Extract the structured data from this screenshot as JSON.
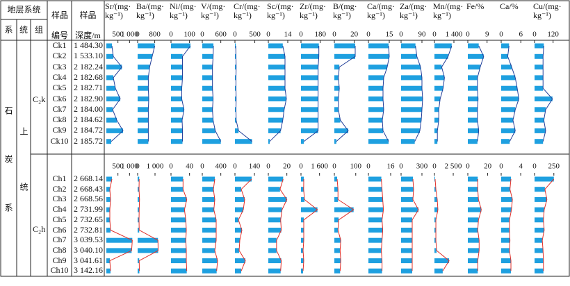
{
  "table": {
    "header": {
      "strata": "地层系统",
      "system": "系",
      "series": "统",
      "formation": "组",
      "sample_id": "样品编号",
      "depth": "样品\n深度/m"
    },
    "system": "石炭系",
    "series": "上统",
    "groups": [
      {
        "formation": "C₂k",
        "samples": [
          {
            "id": "Ck1",
            "depth": "1 484.30"
          },
          {
            "id": "Ck2",
            "depth": "1 533.10"
          },
          {
            "id": "Ck3",
            "depth": "2 182.24"
          },
          {
            "id": "Ck4",
            "depth": "2 182.68"
          },
          {
            "id": "Ck5",
            "depth": "2 182.71"
          },
          {
            "id": "Ck6",
            "depth": "2 182.90"
          },
          {
            "id": "Ck7",
            "depth": "2 184.00"
          },
          {
            "id": "Ck8",
            "depth": "2 184.62"
          },
          {
            "id": "Ck9",
            "depth": "2 184.72"
          },
          {
            "id": "Ck10",
            "depth": "2 185.72"
          }
        ]
      },
      {
        "formation": "C₂h",
        "samples": [
          {
            "id": "Ch1",
            "depth": "2 668.14"
          },
          {
            "id": "Ch2",
            "depth": "2 668.43"
          },
          {
            "id": "Ch3",
            "depth": "2 668.56"
          },
          {
            "id": "Ch4",
            "depth": "2 731.99"
          },
          {
            "id": "Ch5",
            "depth": "2 732.65"
          },
          {
            "id": "Ch6",
            "depth": "2 732.81"
          },
          {
            "id": "Ch7",
            "depth": "3 039.53"
          },
          {
            "id": "Ch8",
            "depth": "3 040.10"
          },
          {
            "id": "Ch9",
            "depth": "3 041.61"
          },
          {
            "id": "Ch10",
            "depth": "3 142.16"
          }
        ]
      }
    ]
  },
  "chart_data": [
    {
      "type": "bar",
      "title": "Sr/(mg·\nkg⁻¹)",
      "panels": [
        {
          "xlim": [
            0,
            1200
          ],
          "xticks": [
            500,
            {
              "value": 1000,
              "label": "1 000"
            }
          ],
          "values": [
            240,
            300,
            670,
            300,
            390,
            600,
            270,
            450,
            720,
            210
          ],
          "color": "#1ea0e0",
          "line_color": "#23409a"
        },
        {
          "xlim": [
            0,
            1200
          ],
          "xticks": [
            500,
            {
              "value": 1000,
              "label": "1 000"
            }
          ],
          "values": [
            240,
            150,
            180,
            150,
            150,
            180,
            1120,
            1090,
            150,
            180
          ],
          "color": "#1ea0e0",
          "line_color": "#e0302a"
        }
      ]
    },
    {
      "type": "bar",
      "title": "Ba/(mg·\nkg⁻¹)",
      "panels": [
        {
          "xlim": [
            0,
            1300
          ],
          "xticks": [
            0,
            800
          ],
          "values": [
            800,
            680,
            560,
            500,
            500,
            520,
            500,
            500,
            500,
            500
          ],
          "color": "#1ea0e0",
          "line_color": "#23409a"
        },
        {
          "xlim": [
            0,
            1600
          ],
          "xticks": [
            0,
            {
              "value": 1000,
              "label": "1 000"
            }
          ],
          "values": [
            90,
            80,
            110,
            90,
            80,
            90,
            1170,
            1180,
            90,
            100
          ],
          "color": "#1ea0e0",
          "line_color": "#e0302a"
        }
      ]
    },
    {
      "type": "bar",
      "title": "Ni/(mg·\nkg⁻¹)",
      "panels": [
        {
          "xlim": [
            0,
            150
          ],
          "xticks": [
            0,
            100
          ],
          "values": [
            105,
            62,
            62,
            62,
            58,
            58,
            70,
            60,
            62,
            62
          ],
          "color": "#1ea0e0",
          "line_color": "#23409a"
        },
        {
          "xlim": [
            0,
            60
          ],
          "xticks": [
            0,
            40
          ],
          "values": [
            26,
            26,
            34,
            29,
            32,
            33,
            32,
            33,
            33,
            34
          ],
          "color": "#1ea0e0",
          "line_color": "#e0302a"
        }
      ]
    },
    {
      "type": "bar",
      "title": "V/(mg·\nkg⁻¹)",
      "panels": [
        {
          "xlim": [
            0,
            900
          ],
          "xticks": [
            0,
            600
          ],
          "values": [
            360,
            350,
            330,
            330,
            330,
            350,
            330,
            350,
            420,
            600
          ],
          "color": "#1ea0e0",
          "line_color": "#23409a"
        },
        {
          "xlim": [
            0,
            600
          ],
          "xticks": [
            0,
            400
          ],
          "values": [
            270,
            240,
            270,
            250,
            300,
            300,
            300,
            270,
            330,
            310
          ],
          "color": "#1ea0e0",
          "line_color": "#e0302a"
        }
      ]
    },
    {
      "type": "bar",
      "title": "Cr/(mg·\nkg⁻¹)",
      "panels": [
        {
          "xlim": [
            0,
            700
          ],
          "xticks": [
            0,
            500
          ],
          "values": [
            20,
            25,
            30,
            25,
            25,
            30,
            25,
            30,
            90,
            430
          ],
          "color": "#1ea0e0",
          "line_color": "#23409a"
        },
        {
          "xlim": [
            0,
            200
          ],
          "xticks": [
            0,
            140
          ],
          "values": [
            120,
            45,
            70,
            60,
            25,
            50,
            35,
            30,
            75,
            45
          ],
          "color": "#1ea0e0",
          "line_color": "#e0302a"
        }
      ]
    },
    {
      "type": "bar",
      "title": "Sc/(mg·\nkg⁻¹)",
      "panels": [
        {
          "xlim": [
            0,
            20
          ],
          "xticks": [
            0,
            14
          ],
          "values": [
            10.4,
            12,
            12,
            12,
            12,
            13,
            11.4,
            10.4,
            8.8,
            1
          ],
          "color": "#1ea0e0",
          "line_color": "#23409a"
        },
        {
          "xlim": [
            0,
            30
          ],
          "xticks": [
            0,
            20
          ],
          "values": [
            16,
            12.6,
            20,
            14.8,
            13.3,
            14,
            8.9,
            8.9,
            14,
            13.3
          ],
          "color": "#1ea0e0",
          "line_color": "#e0302a"
        }
      ]
    },
    {
      "type": "bar",
      "title": "Zr/(mg·\nkg⁻¹)",
      "panels": [
        {
          "xlim": [
            0,
            260
          ],
          "xticks": [
            0,
            180
          ],
          "values": [
            167,
            167,
            160,
            160,
            160,
            160,
            160,
            160,
            160,
            27
          ],
          "color": "#1ea0e0",
          "line_color": "#23409a"
        },
        {
          "xlim": [
            0,
            2400
          ],
          "xticks": [
            0,
            {
              "value": 1600,
              "label": "1 600"
            }
          ],
          "values": [
            240,
            230,
            300,
            1420,
            240,
            240,
            240,
            180,
            240,
            180
          ],
          "color": "#1ea0e0",
          "line_color": "#e0302a"
        }
      ]
    },
    {
      "type": "bar",
      "title": "B/(mg·\nkg⁻¹)",
      "panels": [
        {
          "xlim": [
            0,
            28
          ],
          "xticks": [
            0,
            20
          ],
          "values": [
            21,
            21,
            5,
            4,
            5,
            4,
            4,
            6,
            14,
            2
          ],
          "color": "#1ea0e0",
          "line_color": "#23409a"
        },
        {
          "xlim": [
            0,
            130
          ],
          "xticks": [
            0,
            100
          ],
          "values": [
            13,
            17,
            17,
            90,
            20,
            17,
            30,
            27,
            30,
            27
          ],
          "color": "#1ea0e0",
          "line_color": "#e0302a"
        }
      ]
    },
    {
      "type": "bar",
      "title": "Ca/(mg·\nkg⁻¹)",
      "panels": [
        {
          "xlim": [
            0,
            20
          ],
          "xticks": [
            0,
            15
          ],
          "values": [
            14.5,
            15,
            13.5,
            11,
            10.5,
            10.5,
            11,
            10,
            10.5,
            14.5
          ],
          "color": "#1ea0e0",
          "line_color": "#23409a"
        },
        {
          "xlim": [
            0,
            20
          ],
          "xticks": [
            0,
            16
          ],
          "values": [
            9.3,
            9.8,
            10.3,
            10.8,
            9.8,
            10.3,
            9.8,
            9.3,
            9.8,
            9.8
          ],
          "color": "#1ea0e0",
          "line_color": "#e0302a"
        }
      ]
    },
    {
      "type": "bar",
      "title": "Za/(mg·\nkg⁻¹)",
      "panels": [
        {
          "xlim": [
            0,
            120
          ],
          "xticks": [
            0,
            90
          ],
          "values": [
            62,
            68,
            84,
            90,
            90,
            93,
            90,
            87,
            81,
            59
          ],
          "color": "#1ea0e0",
          "line_color": "#23409a"
        },
        {
          "xlim": [
            0,
            400
          ],
          "xticks": [
            0,
            300
          ],
          "values": [
            170,
            180,
            170,
            250,
            160,
            160,
            160,
            160,
            160,
            160
          ],
          "color": "#1ea0e0",
          "line_color": "#e0302a"
        }
      ]
    },
    {
      "type": "bar",
      "title": "Mn/(mg·\nkg⁻¹)",
      "panels": [
        {
          "xlim": [
            0,
            2000
          ],
          "xticks": [
            0,
            {
              "value": 1400,
              "label": "1 400"
            }
          ],
          "values": [
            1240,
            980,
            520,
            720,
            620,
            410,
            310,
            310,
            210,
            210
          ],
          "color": "#1ea0e0",
          "line_color": "#23409a"
        },
        {
          "xlim": [
            0,
            3700
          ],
          "xticks": [
            0,
            {
              "value": 2500,
              "label": "2 500"
            }
          ],
          "values": [
            90,
            190,
            370,
            460,
            190,
            190,
            190,
            280,
            1950,
            1100
          ],
          "color": "#1ea0e0",
          "line_color": "#e0302a"
        }
      ]
    },
    {
      "type": "bar",
      "title": "Fe/%",
      "panels": [
        {
          "xlim": [
            0,
            13
          ],
          "xticks": [
            0,
            9
          ],
          "values": [
            5.1,
            7.4,
            5.8,
            4.5,
            4.5,
            4.8,
            4.5,
            4.5,
            5.1,
            4.5
          ],
          "color": "#1ea0e0",
          "line_color": "#23409a"
        },
        {
          "xlim": [
            0,
            28
          ],
          "xticks": [
            0,
            20
          ],
          "values": [
            10,
            10,
            10.7,
            13.6,
            10.7,
            10,
            11.4,
            11.4,
            10,
            10
          ],
          "color": "#1ea0e0",
          "line_color": "#e0302a"
        }
      ]
    },
    {
      "type": "bar",
      "title": "Ca/%",
      "panels": [
        {
          "xlim": [
            0,
            8.5
          ],
          "xticks": [
            0,
            6
          ],
          "values": [
            2.4,
            2.0,
            3.2,
            4.3,
            4.9,
            5.4,
            4.3,
            3.6,
            4.3,
            2.6
          ],
          "color": "#1ea0e0",
          "line_color": "#23409a"
        },
        {
          "xlim": [
            0,
            5.7
          ],
          "xticks": [
            0,
            4
          ],
          "values": [
            2.0,
            1.8,
            2.3,
            2.1,
            1.7,
            1.7,
            1.8,
            1.7,
            2.0,
            2.0
          ],
          "color": "#1ea0e0",
          "line_color": "#e0302a"
        }
      ]
    },
    {
      "type": "bar",
      "title": "Cu/(mg·\nkg⁻¹)",
      "panels": [
        {
          "xlim": [
            0,
            180
          ],
          "xticks": [
            0,
            120
          ],
          "values": [
            60,
            55,
            55,
            55,
            55,
            116,
            72,
            60,
            72,
            55
          ],
          "color": "#1ea0e0",
          "line_color": "#23409a"
        },
        {
          "xlim": [
            0,
            360
          ],
          "xticks": [
            0,
            250
          ],
          "values": [
            250,
            134,
            160,
            125,
            115,
            125,
            100,
            110,
            115,
            115
          ],
          "color": "#1ea0e0",
          "line_color": "#e0302a"
        }
      ]
    }
  ]
}
